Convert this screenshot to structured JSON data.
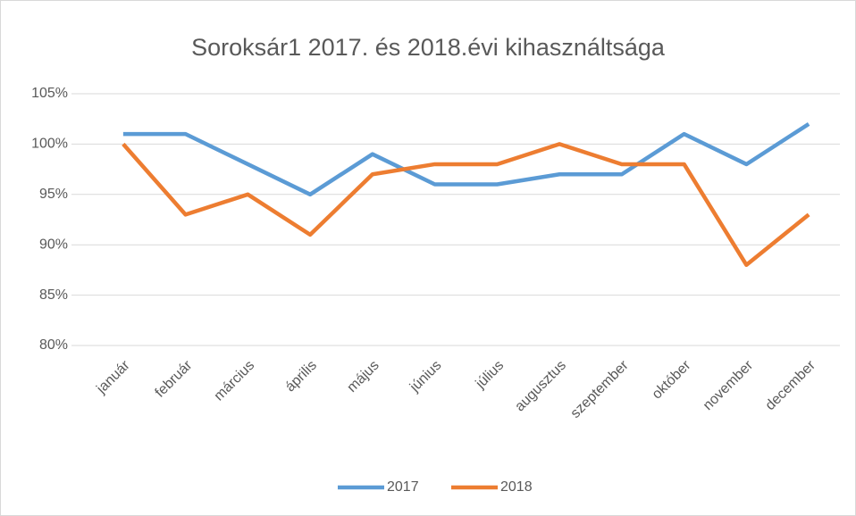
{
  "chart_data": {
    "type": "line",
    "title": "Soroksár1 2017. és 2018.évi kihasználtsága",
    "categories": [
      "január",
      "február",
      "március",
      "április",
      "május",
      "június",
      "július",
      "augusztus",
      "szeptember",
      "október",
      "november",
      "december"
    ],
    "series": [
      {
        "name": "2017",
        "color": "#5b9bd5",
        "values": [
          101,
          101,
          98,
          95,
          99,
          96,
          96,
          97,
          97,
          101,
          98,
          102
        ]
      },
      {
        "name": "2018",
        "color": "#ed7d31",
        "values": [
          100,
          93,
          95,
          91,
          97,
          98,
          98,
          100,
          98,
          98,
          88,
          93
        ]
      }
    ],
    "ylim": [
      80,
      105
    ],
    "yticks": [
      {
        "value": 80,
        "label": "80%"
      },
      {
        "value": 85,
        "label": "85%"
      },
      {
        "value": 90,
        "label": "90%"
      },
      {
        "value": 95,
        "label": "95%"
      },
      {
        "value": 100,
        "label": "100%"
      },
      {
        "value": 105,
        "label": "105%"
      }
    ],
    "grid": true,
    "legend": "bottom"
  }
}
